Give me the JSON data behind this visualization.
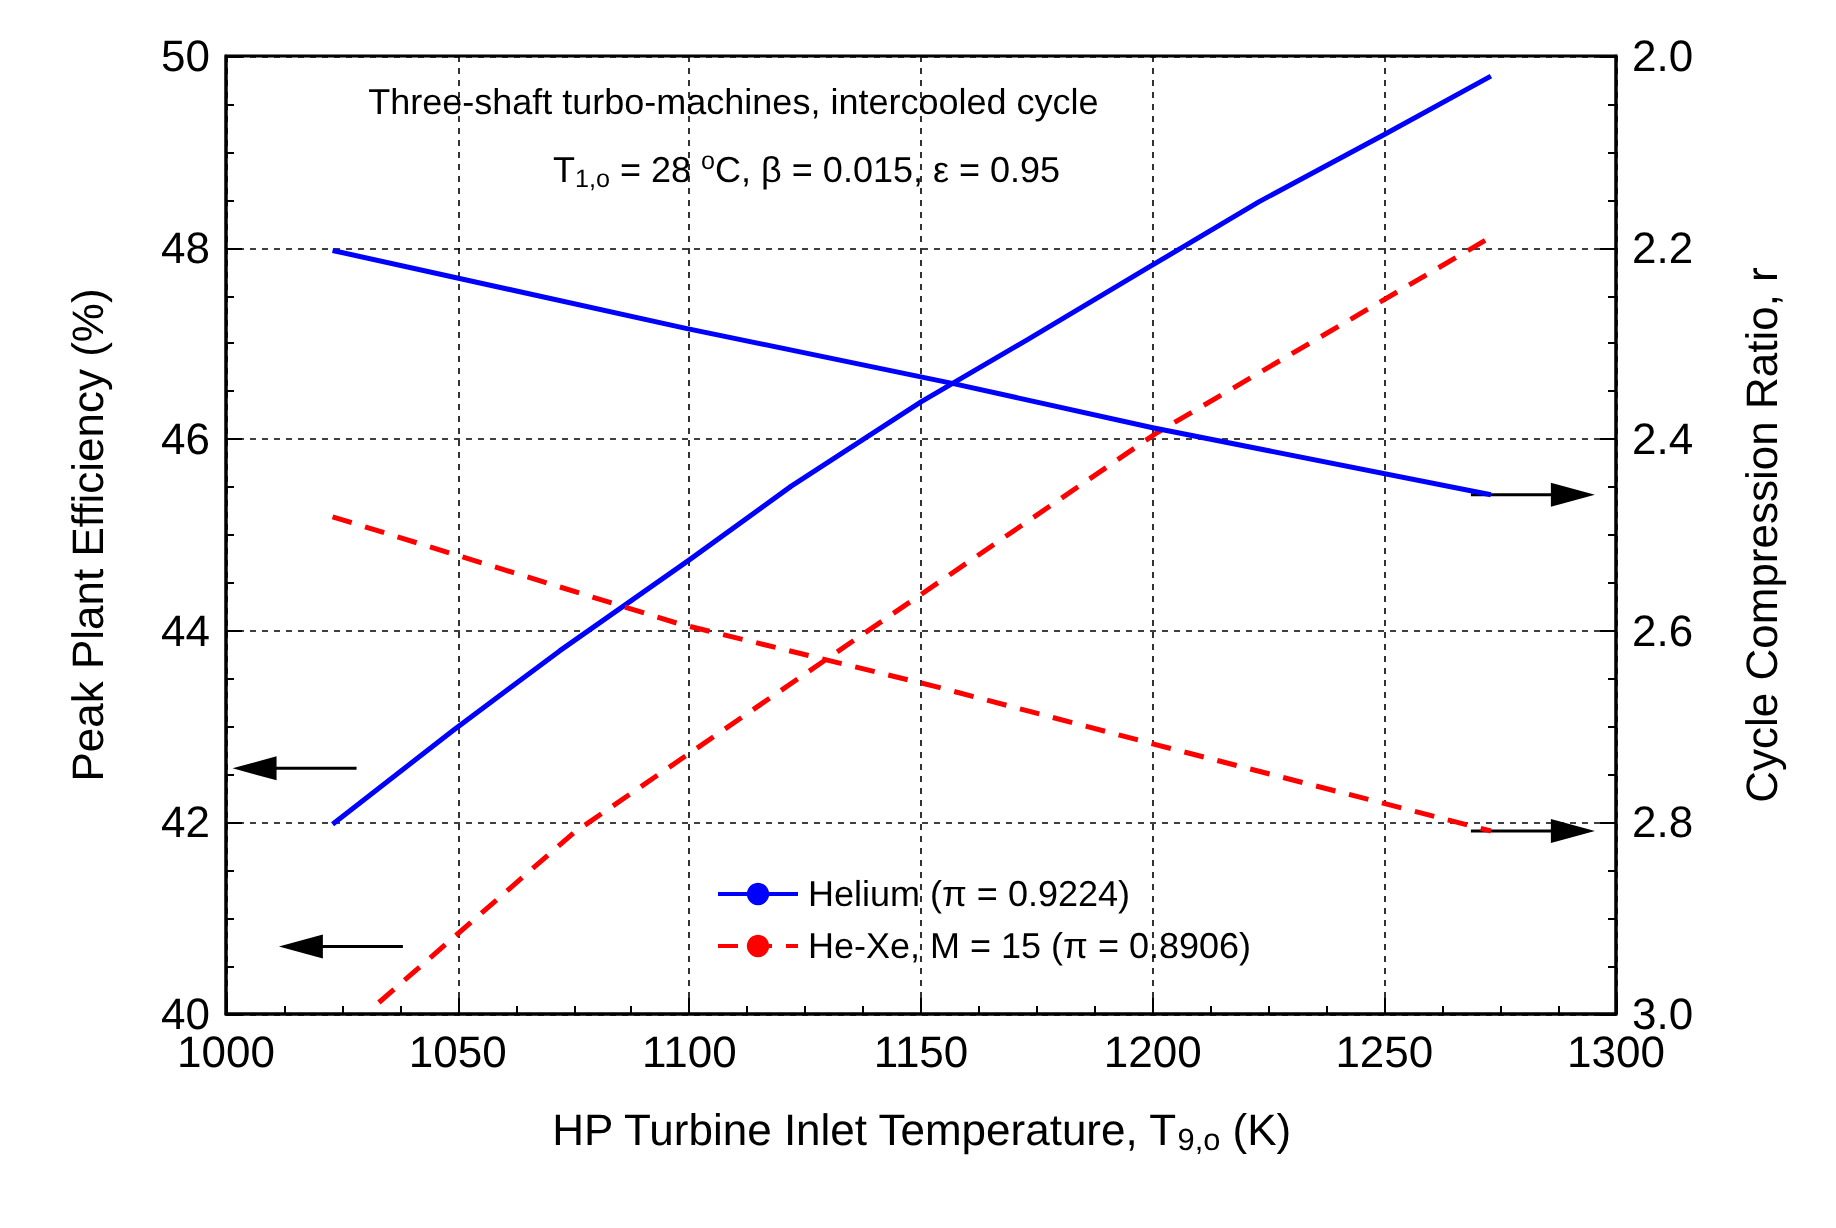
{
  "chart_data": {
    "type": "line",
    "annotations": [
      "Three-shaft turbo-machines, intercooled cycle",
      "T$_{1,o}$ = 28 $^{o}$C, β = 0.015, ε = 0.95"
    ],
    "xlabel": "HP Turbine Inlet Temperature, T$_{9,o}$ (K)",
    "ylabel": "Peak Plant Efficiency (%)",
    "y2label": "Cycle Compression Ratio, r",
    "xlim": [
      1000,
      1300
    ],
    "xticks": [
      1000,
      1050,
      1100,
      1150,
      1200,
      1250,
      1300
    ],
    "ylim": [
      40,
      50
    ],
    "yticks": [
      40,
      42,
      44,
      46,
      48,
      50
    ],
    "y2lim": [
      3.0,
      2.0
    ],
    "y2ticks": [
      {
        "value": 3.0,
        "label": "3.0"
      },
      2.8,
      2.6,
      2.4,
      2.2,
      {
        "value": 2.0,
        "label": "2.0"
      }
    ],
    "grid": true,
    "legend": "bottom",
    "marker": "none",
    "series": [
      {
        "name": "Helium (π = 0.9224)",
        "color": "#0000ff",
        "line_style": "solid",
        "x": [
          1023,
          1049,
          1072,
          1100,
          1122,
          1150,
          1173,
          1199,
          1223,
          1250,
          1273
        ],
        "values": [
          41.98,
          42.96,
          43.79,
          44.74,
          45.51,
          46.39,
          47.04,
          47.79,
          48.48,
          49.18,
          49.79
        ]
      },
      {
        "name": "He-Xe, M = 15 (π = 0.8906)",
        "color": "#ff0000",
        "line_style": "dashed",
        "x": [
          1033,
          1075,
          1131,
          1201,
          1273
        ],
        "values": [
          40.12,
          41.89,
          43.75,
          46.07,
          48.11
        ]
      },
      {
        "color": "#0000ff",
        "line_style": "solid",
        "axis": "y2",
        "x": [
          1023,
          1099,
          1157,
          1200,
          1273
        ],
        "values": [
          2.203,
          2.284,
          2.342,
          2.388,
          2.458
        ]
      },
      {
        "color": "#ff0000",
        "line_style": "dashed",
        "axis": "y2",
        "x": [
          1023,
          1098,
          1153,
          1200,
          1273
        ],
        "values": [
          2.481,
          2.593,
          2.658,
          2.718,
          2.809
        ]
      }
    ]
  }
}
